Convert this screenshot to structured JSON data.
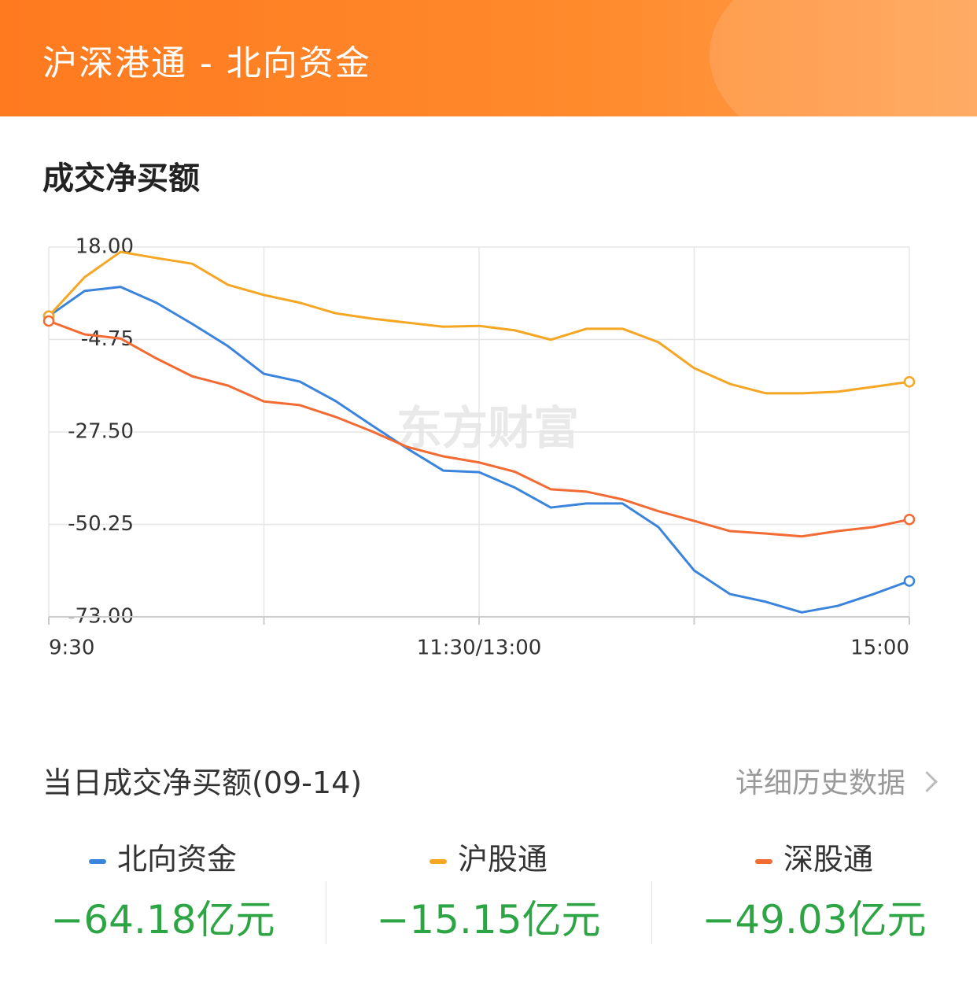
{
  "header": {
    "title": "沪深港通 - 北向资金"
  },
  "section_title": "成交净买额",
  "chart_data": {
    "type": "line",
    "watermark": "东方财富",
    "x": [
      0,
      10,
      20,
      30,
      40,
      50,
      60,
      70,
      80,
      90,
      100,
      110,
      120,
      130,
      140,
      150,
      160,
      170,
      180,
      190,
      200,
      210,
      220,
      230,
      240
    ],
    "xlim": [
      0,
      240
    ],
    "xticks": [
      {
        "value": 0,
        "label": "9:30"
      },
      {
        "value": 60,
        "label": null
      },
      {
        "value": 120,
        "label": "11:30/13:00"
      },
      {
        "value": 180,
        "label": null
      },
      {
        "value": 240,
        "label": "15:00"
      }
    ],
    "ylim": [
      -73,
      18
    ],
    "yticks": [
      {
        "value": 18,
        "label": "18.00"
      },
      {
        "value": -4.75,
        "label": "-4.75"
      },
      {
        "value": -27.5,
        "label": "-27.50"
      },
      {
        "value": -50.25,
        "label": "-50.25"
      },
      {
        "value": -73,
        "label": "-73.00"
      }
    ],
    "grid": true,
    "series": [
      {
        "name": "北向资金",
        "color": "#3b84dc",
        "values": [
          1.0,
          7.2,
          8.2,
          4.3,
          -0.9,
          -6.4,
          -13.2,
          -15.1,
          -19.9,
          -25.8,
          -31.6,
          -37.0,
          -37.4,
          -41.2,
          -46.1,
          -45.1,
          -45.1,
          -50.9,
          -61.6,
          -67.4,
          -69.3,
          -71.9,
          -70.3,
          -67.4,
          -64.18
        ]
      },
      {
        "name": "沪股通",
        "color": "#f5a623",
        "values": [
          1.0,
          10.6,
          16.8,
          15.3,
          13.9,
          8.7,
          6.2,
          4.3,
          1.7,
          0.4,
          -0.6,
          -1.6,
          -1.4,
          -2.5,
          -4.8,
          -2.1,
          -2.1,
          -5.4,
          -11.8,
          -15.7,
          -18.0,
          -18.0,
          -17.6,
          -16.4,
          -15.15
        ]
      },
      {
        "name": "深股通",
        "color": "#f26b33",
        "values": [
          -0.2,
          -3.5,
          -4.5,
          -9.4,
          -13.8,
          -16.1,
          -20.0,
          -20.9,
          -23.8,
          -27.3,
          -31.2,
          -33.5,
          -35.0,
          -37.3,
          -41.6,
          -42.2,
          -44.1,
          -47.0,
          -49.4,
          -51.9,
          -52.5,
          -53.2,
          -51.9,
          -50.9,
          -49.03
        ]
      }
    ]
  },
  "summary": {
    "title": "当日成交净买额(09-14)",
    "link": "详细历史数据",
    "items": [
      {
        "name": "北向资金",
        "value": "−64.18亿元"
      },
      {
        "name": "沪股通",
        "value": "−15.15亿元"
      },
      {
        "name": "深股通",
        "value": "−49.03亿元"
      }
    ]
  }
}
